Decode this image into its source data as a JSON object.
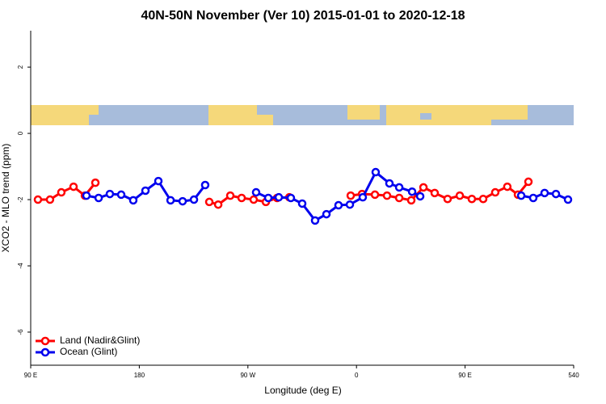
{
  "chart_data": {
    "type": "line",
    "title": "40N-50N November (Ver 10)   2015-01-01 to 2020-12-18",
    "xlabel": "Longitude (deg E)",
    "ylabel": "XCO2 - MLO trend (ppm)",
    "xlim": [
      90,
      540
    ],
    "ylim": [
      -7,
      3.1
    ],
    "xticks": [
      {
        "value": 90,
        "label": "90 E"
      },
      180,
      {
        "value": 270,
        "label": "90 W"
      },
      {
        "value": 360,
        "label": "0"
      },
      {
        "value": 450,
        "label": "90 E"
      },
      540
    ],
    "yticks": [
      -6,
      -4,
      -2,
      0,
      2
    ],
    "legend": "bottom-left",
    "series": [
      {
        "name": "Land (Nadir&Glint)",
        "color": "#ff0000",
        "x": [
          96,
          106,
          115.4,
          125.5,
          134.9,
          143.6,
          null,
          238,
          245.4,
          255.4,
          264.8,
          274.8,
          284.9,
          294.2,
          304.3,
          null,
          355.2,
          364.6,
          375.3,
          385.3,
          395.4,
          405.4,
          415.5,
          424.8,
          435.5,
          445.6,
          455.6,
          465,
          475,
          485,
          493.8,
          502.5
        ],
        "values": [
          -2.0,
          -2.0,
          -1.78,
          -1.61,
          -1.88,
          -1.49,
          null,
          -2.07,
          -2.15,
          -1.88,
          -1.95,
          -2.0,
          -2.07,
          -1.95,
          -1.93,
          null,
          -1.88,
          -1.83,
          -1.85,
          -1.88,
          -1.95,
          -2.02,
          -1.63,
          -1.8,
          -1.98,
          -1.88,
          -1.98,
          -1.98,
          -1.78,
          -1.61,
          -1.85,
          -1.46
        ]
      },
      {
        "name": "Ocean (Glint)",
        "color": "#0000ee",
        "x": [
          136.2,
          146.3,
          155.6,
          165,
          175,
          185.1,
          195.8,
          205.9,
          215.9,
          225.3,
          234.6,
          null,
          276.8,
          286.9,
          295.6,
          305.6,
          315,
          325.7,
          335.1,
          345.1,
          354.5,
          365.2,
          375.9,
          387.3,
          395.4,
          406.1,
          412.8,
          null,
          496.5,
          506.5,
          515.9,
          525.3,
          535.3
        ],
        "values": [
          -1.88,
          -1.95,
          -1.83,
          -1.85,
          -2.02,
          -1.73,
          -1.44,
          -2.02,
          -2.05,
          -2.0,
          -1.56,
          null,
          -1.78,
          -1.95,
          -1.93,
          -1.95,
          -2.12,
          -2.63,
          -2.44,
          -2.17,
          -2.15,
          -1.93,
          -1.17,
          -1.51,
          -1.63,
          -1.76,
          -1.9,
          null,
          -1.88,
          -1.95,
          -1.8,
          -1.83,
          -2.0
        ]
      }
    ]
  }
}
